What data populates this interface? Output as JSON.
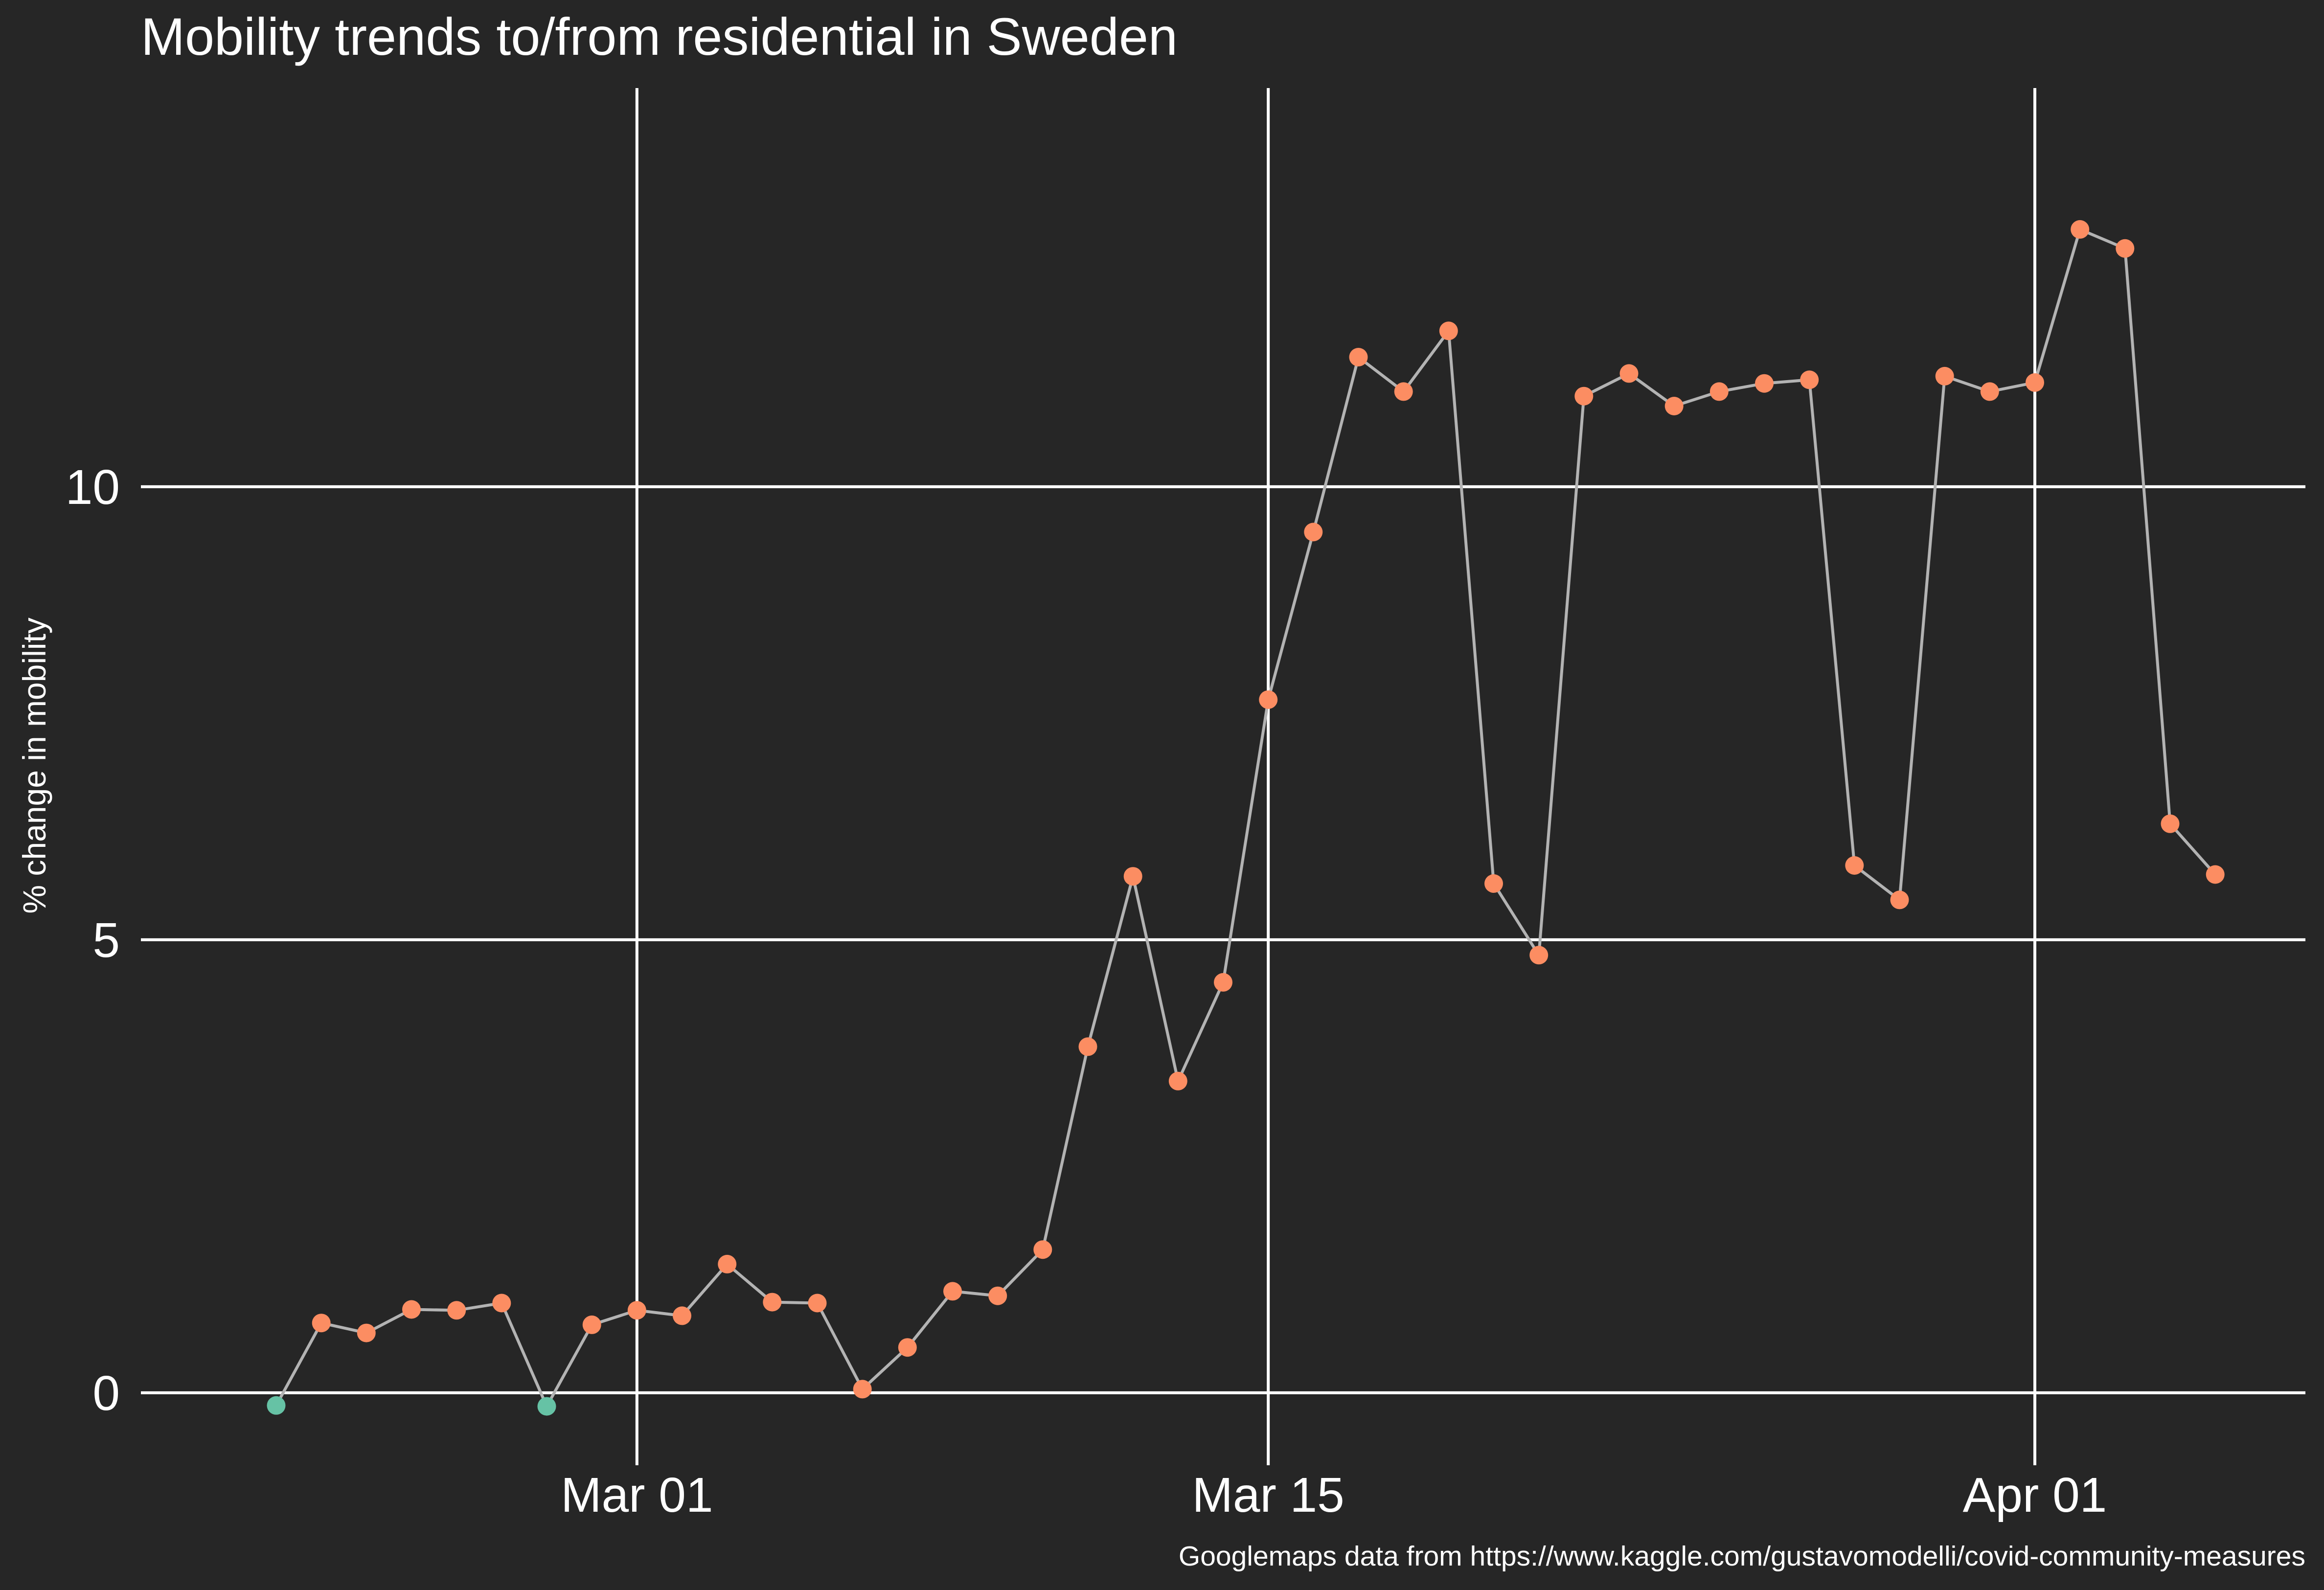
{
  "chart_data": {
    "type": "line",
    "title": "Mobility trends to/from residential in Sweden",
    "xlabel": "",
    "ylabel": "% change in mobility",
    "caption": "Googlemaps data from https://www.kaggle.com/gustavomodelli/covid-community-measures",
    "x_ticks": [
      {
        "date": "2020-03-01",
        "label": "Mar 01"
      },
      {
        "date": "2020-03-15",
        "label": "Mar 15"
      },
      {
        "date": "2020-04-01",
        "label": "Apr 01"
      }
    ],
    "y_ticks": [
      0,
      5,
      10
    ],
    "xlim": [
      "2020-02-19",
      "2020-04-07"
    ],
    "ylim": [
      -0.8,
      14.4
    ],
    "grid": true,
    "colors": {
      "background": "#262626",
      "line": "#b3b3b3",
      "positive": "#fc8d62",
      "negative": "#66c2a5",
      "grid": "#ffffff"
    },
    "series": [
      {
        "dates": [
          "2020-02-22",
          "2020-02-23",
          "2020-02-24",
          "2020-02-25",
          "2020-02-26",
          "2020-02-27",
          "2020-02-28",
          "2020-02-29",
          "2020-03-01",
          "2020-03-02",
          "2020-03-03",
          "2020-03-04",
          "2020-03-05",
          "2020-03-06",
          "2020-03-07",
          "2020-03-08",
          "2020-03-09",
          "2020-03-10",
          "2020-03-11",
          "2020-03-12",
          "2020-03-13",
          "2020-03-14",
          "2020-03-15",
          "2020-03-16",
          "2020-03-17",
          "2020-03-18",
          "2020-03-19",
          "2020-03-20",
          "2020-03-21",
          "2020-03-22",
          "2020-03-23",
          "2020-03-24",
          "2020-03-25",
          "2020-03-26",
          "2020-03-27",
          "2020-03-28",
          "2020-03-29",
          "2020-03-30",
          "2020-03-31",
          "2020-04-01",
          "2020-04-02",
          "2020-04-03",
          "2020-04-04",
          "2020-04-05"
        ],
        "values": [
          -0.14,
          0.77,
          0.66,
          0.92,
          0.91,
          0.99,
          -0.15,
          0.75,
          0.91,
          0.85,
          1.42,
          1.0,
          0.99,
          0.04,
          0.5,
          1.12,
          1.07,
          1.58,
          3.82,
          5.7,
          3.44,
          4.53,
          7.65,
          9.5,
          11.43,
          11.05,
          11.72,
          5.62,
          4.83,
          11.0,
          11.25,
          10.89,
          11.05,
          11.14,
          11.18,
          5.82,
          5.44,
          11.22,
          11.05,
          11.15,
          12.84,
          12.63,
          6.28,
          5.72
        ]
      }
    ]
  }
}
